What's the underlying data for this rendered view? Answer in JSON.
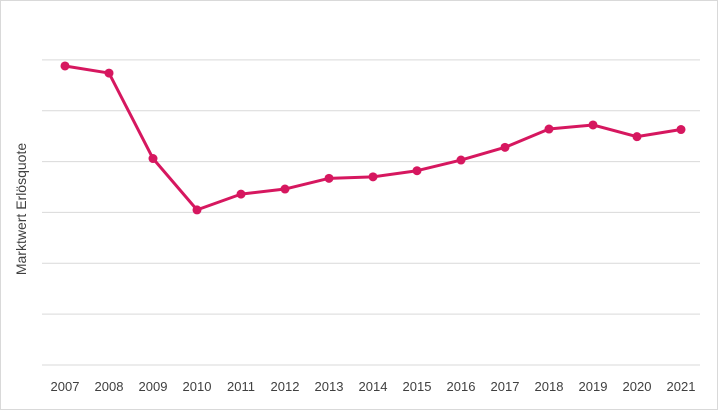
{
  "chart_data": {
    "type": "line",
    "title": "",
    "xlabel": "",
    "ylabel": "Marktwert Erlösquote",
    "x": [
      "2007",
      "2008",
      "2009",
      "2010",
      "2011",
      "2012",
      "2013",
      "2014",
      "2015",
      "2016",
      "2017",
      "2018",
      "2019",
      "2020",
      "2021"
    ],
    "series": [
      {
        "values": [
          5.88,
          5.74,
          4.06,
          3.05,
          3.36,
          3.46,
          3.67,
          3.7,
          3.82,
          4.03,
          4.28,
          4.64,
          4.72,
          4.49,
          4.63
        ],
        "color": "#d6175f"
      }
    ],
    "ylim": [
      0,
      7
    ],
    "y_gridlines": [
      0,
      1,
      2,
      3,
      4,
      5,
      6
    ],
    "y_tick_labels_shown": false,
    "grid": true,
    "legend": "none"
  }
}
